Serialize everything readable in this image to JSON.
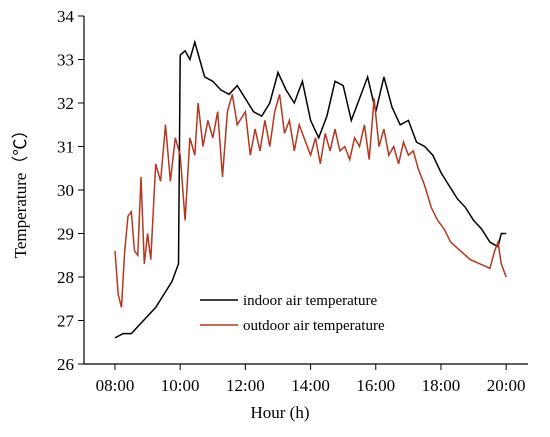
{
  "chart_data": {
    "type": "line",
    "xlabel": "Hour (h)",
    "ylabel": "Temperature（℃）",
    "xlim": [
      7.05,
      20.67
    ],
    "ylim": [
      26,
      34
    ],
    "xticks": [
      {
        "value": 8,
        "label": "08:00"
      },
      {
        "value": 10,
        "label": "10:00"
      },
      {
        "value": 12,
        "label": "12:00"
      },
      {
        "value": 14,
        "label": "14:00"
      },
      {
        "value": 16,
        "label": "16:00"
      },
      {
        "value": 18,
        "label": "18:00"
      },
      {
        "value": 20,
        "label": "20:00"
      }
    ],
    "yticks": [
      26,
      27,
      28,
      29,
      30,
      31,
      32,
      33,
      34
    ],
    "legend": "lower-center",
    "series": [
      {
        "name": "indoor air temperature",
        "color": "#000000",
        "x": [
          8.0,
          8.25,
          8.5,
          8.75,
          9.0,
          9.25,
          9.5,
          9.75,
          9.95,
          10.0,
          10.15,
          10.3,
          10.45,
          10.6,
          10.75,
          11.0,
          11.25,
          11.5,
          11.75,
          12.0,
          12.25,
          12.5,
          12.75,
          13.0,
          13.25,
          13.5,
          13.75,
          14.0,
          14.25,
          14.5,
          14.75,
          15.0,
          15.25,
          15.5,
          15.75,
          16.0,
          16.25,
          16.5,
          16.75,
          17.0,
          17.25,
          17.5,
          17.75,
          18.0,
          18.25,
          18.5,
          18.75,
          19.0,
          19.25,
          19.5,
          19.75,
          19.85,
          20.0
        ],
        "values": [
          26.6,
          26.7,
          26.7,
          26.9,
          27.1,
          27.3,
          27.6,
          27.9,
          28.3,
          33.1,
          33.2,
          33.0,
          33.4,
          33.0,
          32.6,
          32.5,
          32.3,
          32.2,
          32.4,
          32.1,
          31.8,
          31.7,
          32.0,
          32.7,
          32.3,
          32.0,
          32.5,
          31.6,
          31.2,
          31.7,
          32.5,
          32.4,
          31.6,
          32.1,
          32.6,
          31.8,
          32.6,
          31.9,
          31.5,
          31.6,
          31.1,
          31.0,
          30.8,
          30.4,
          30.1,
          29.8,
          29.6,
          29.3,
          29.1,
          28.8,
          28.7,
          29.0,
          29.0
        ]
      },
      {
        "name": "outdoor air temperature",
        "color": "#b5371f",
        "x": [
          8.0,
          8.1,
          8.2,
          8.3,
          8.4,
          8.5,
          8.6,
          8.7,
          8.8,
          8.9,
          9.0,
          9.1,
          9.25,
          9.4,
          9.55,
          9.7,
          9.85,
          10.0,
          10.15,
          10.3,
          10.45,
          10.55,
          10.7,
          10.85,
          11.0,
          11.15,
          11.3,
          11.45,
          11.6,
          11.75,
          12.0,
          12.15,
          12.3,
          12.45,
          12.6,
          12.75,
          12.9,
          13.05,
          13.2,
          13.35,
          13.5,
          13.65,
          13.8,
          14.0,
          14.15,
          14.3,
          14.45,
          14.6,
          14.75,
          14.9,
          15.05,
          15.2,
          15.35,
          15.5,
          15.65,
          15.8,
          15.95,
          16.1,
          16.25,
          16.4,
          16.55,
          16.7,
          16.85,
          17.0,
          17.15,
          17.3,
          17.5,
          17.7,
          17.9,
          18.1,
          18.3,
          18.6,
          18.9,
          19.2,
          19.5,
          19.65,
          19.75,
          19.85,
          20.0
        ],
        "values": [
          28.6,
          27.6,
          27.3,
          28.6,
          29.4,
          29.5,
          28.6,
          28.5,
          30.3,
          28.3,
          29.0,
          28.4,
          30.6,
          30.2,
          31.5,
          30.2,
          31.2,
          30.8,
          29.3,
          31.2,
          30.8,
          32.0,
          31.0,
          31.6,
          31.2,
          31.8,
          30.3,
          31.8,
          32.2,
          31.5,
          31.8,
          30.8,
          31.4,
          30.9,
          31.6,
          31.0,
          31.8,
          32.2,
          31.3,
          31.6,
          30.9,
          31.5,
          31.2,
          30.8,
          31.2,
          30.6,
          31.3,
          30.9,
          31.4,
          30.9,
          31.0,
          30.7,
          31.2,
          31.0,
          31.5,
          30.7,
          32.1,
          31.0,
          31.4,
          30.8,
          31.0,
          30.6,
          31.1,
          30.8,
          30.9,
          30.5,
          30.1,
          29.6,
          29.3,
          29.1,
          28.8,
          28.6,
          28.4,
          28.3,
          28.2,
          28.6,
          28.8,
          28.3,
          28.0
        ]
      }
    ]
  }
}
